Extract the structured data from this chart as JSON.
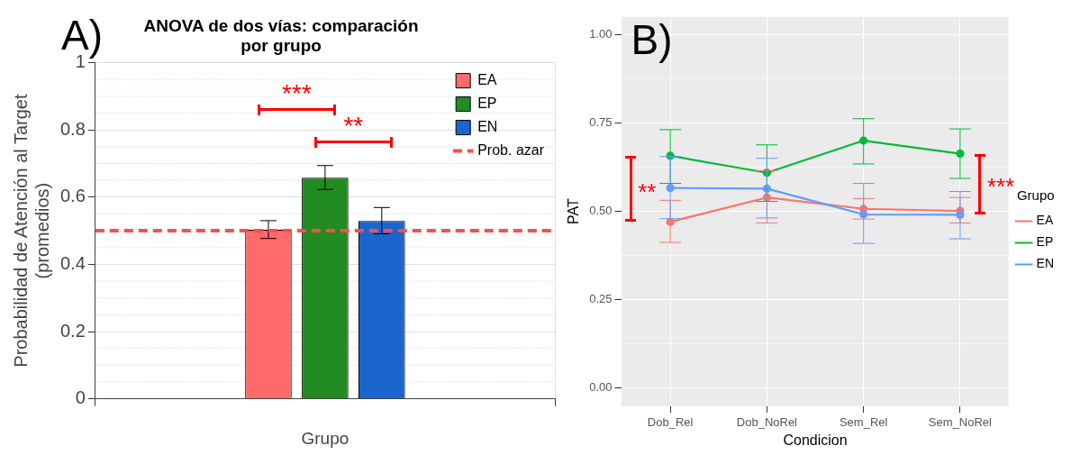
{
  "chart_data": [
    {
      "type": "bar",
      "title": "ANOVA de dos vías: comparación por grupo",
      "xlabel": "Grupo",
      "ylabel": "Probabilidad de Atención al Target\n(promedios)",
      "categories": [
        null
      ],
      "series": [
        {
          "name": "EA",
          "color": "#ff6b6b",
          "values": [
            0.503
          ],
          "errors": [
            [
              0.477,
              0.53
            ]
          ]
        },
        {
          "name": "EP",
          "color": "#228b22",
          "values": [
            0.658
          ],
          "errors": [
            [
              0.623,
              0.694
            ]
          ]
        },
        {
          "name": "EN",
          "color": "#1a66cc",
          "values": [
            0.529
          ],
          "errors": [
            [
              0.491,
              0.569
            ]
          ]
        }
      ],
      "ylim": [
        0,
        1
      ],
      "yticks": [
        0,
        0.2,
        0.4,
        0.6,
        0.8,
        1
      ],
      "grid": true,
      "legend": "top right",
      "ref_lines": [
        {
          "axis": "y",
          "value": 0.5,
          "label": "Prob. azar",
          "color": "#ff4d4d",
          "line_style": "dashed"
        }
      ],
      "annotations": [
        "A)",
        "***",
        "**"
      ]
    },
    {
      "type": "line",
      "xlabel": "Condicion",
      "ylabel": "PAT",
      "legend_title": "Grupo",
      "categories": [
        "Dob_Rel",
        "Dob_NoRel",
        "Sem_Rel",
        "Sem_NoRel"
      ],
      "series": [
        {
          "name": "EA",
          "color": "#f8766d",
          "values": [
            0.47,
            0.539,
            0.507,
            0.501
          ],
          "errors": [
            [
              0.412,
              0.531
            ],
            [
              0.467,
              0.615
            ],
            [
              0.478,
              0.536
            ],
            [
              0.467,
              0.539
            ]
          ]
        },
        {
          "name": "EP",
          "color": "#00ba38",
          "values": [
            0.657,
            0.609,
            0.7,
            0.663
          ],
          "errors": [
            [
              0.579,
              0.731
            ],
            [
              0.528,
              0.688
            ],
            [
              0.634,
              0.762
            ],
            [
              0.593,
              0.733
            ]
          ]
        },
        {
          "name": "EN",
          "color": "#619cff",
          "values": [
            0.566,
            0.564,
            0.491,
            0.49
          ],
          "errors": [
            [
              0.479,
              0.655
            ],
            [
              0.481,
              0.65
            ],
            [
              0.409,
              0.579
            ],
            [
              0.422,
              0.556
            ]
          ]
        }
      ],
      "ylim": [
        -0.05,
        1.05
      ],
      "yticks": [
        {
          "value": 0,
          "label": "0.00"
        },
        {
          "value": 0.25,
          "label": "0.25"
        },
        {
          "value": 0.5,
          "label": "0.50"
        },
        {
          "value": 0.75,
          "label": "0.75"
        },
        {
          "value": 1,
          "label": "1.00"
        }
      ],
      "grid": true,
      "legend": "right",
      "marker": "circle",
      "line_style": "solid",
      "annotations": [
        "B)",
        "**",
        "***"
      ]
    }
  ]
}
